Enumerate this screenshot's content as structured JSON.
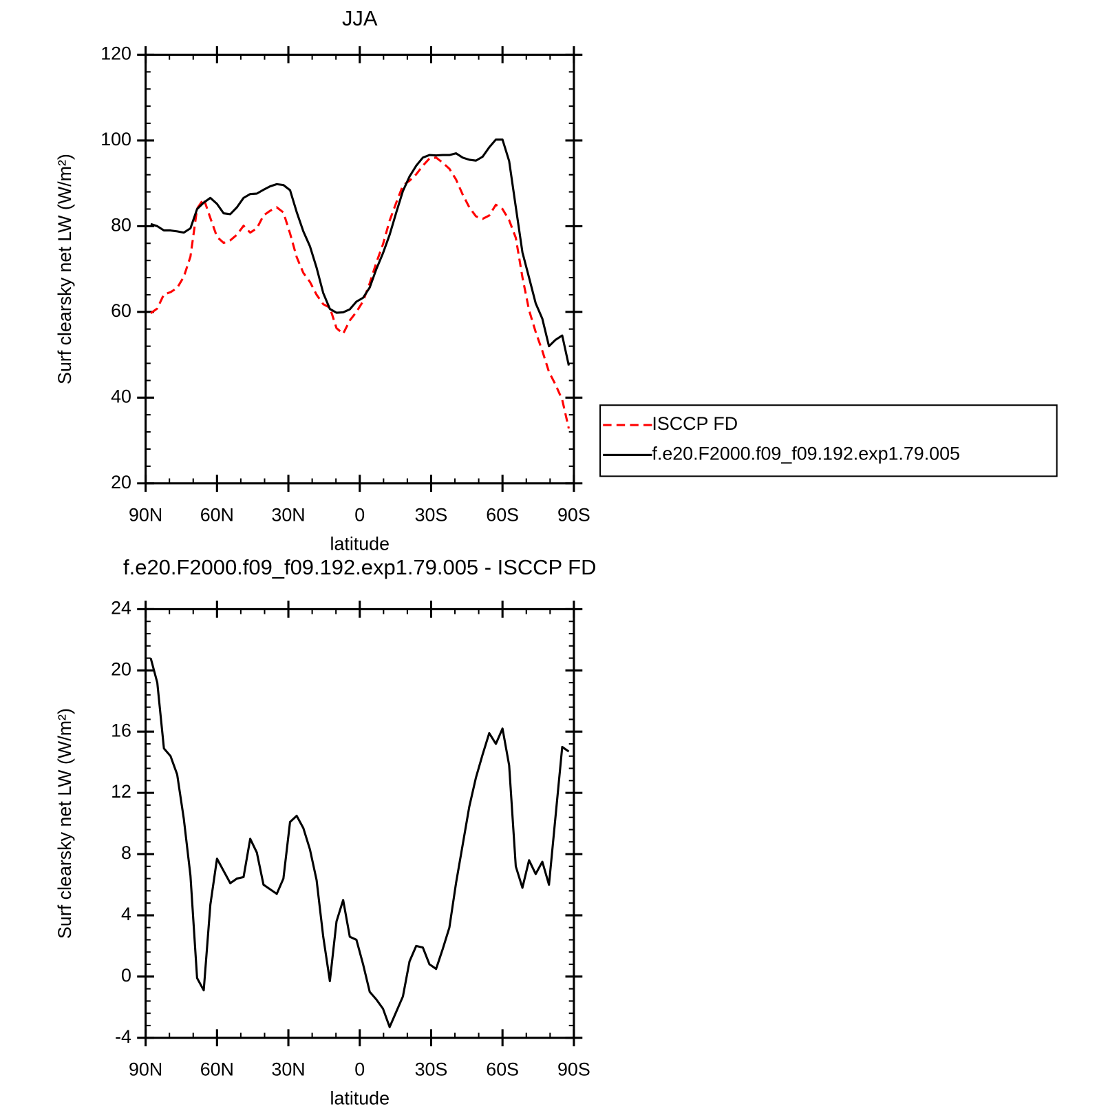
{
  "chart_data": [
    {
      "type": "line",
      "title": "JJA",
      "xlabel": "latitude",
      "ylabel": "Surf clearsky net LW (W/m²)",
      "x": [
        87.86,
        85.1,
        82.31,
        79.53,
        76.74,
        73.95,
        71.16,
        68.37,
        65.58,
        62.79,
        60.0,
        57.21,
        54.42,
        51.63,
        48.84,
        46.04,
        43.25,
        40.46,
        37.67,
        34.88,
        32.09,
        29.3,
        26.51,
        23.72,
        20.93,
        18.14,
        15.35,
        12.56,
        9.77,
        6.98,
        4.19,
        1.4,
        -1.4,
        -4.19,
        -6.98,
        -9.77,
        -12.56,
        -15.35,
        -18.14,
        -20.93,
        -23.72,
        -26.51,
        -29.3,
        -32.09,
        -34.88,
        -37.67,
        -40.46,
        -43.25,
        -46.04,
        -48.84,
        -51.63,
        -54.42,
        -57.21,
        -60.0,
        -62.79,
        -65.58,
        -68.37,
        -71.16,
        -73.95,
        -76.74,
        -79.53,
        -82.31,
        -85.1,
        -87.86
      ],
      "series": [
        {
          "name": "ISCCP FD",
          "color": "#ff0000",
          "linestyle": "dashed",
          "values": [
            59.7,
            60.8,
            64.1,
            64.6,
            65.6,
            68.2,
            72.9,
            84.1,
            86.4,
            81.9,
            77.5,
            76.1,
            76.7,
            78.0,
            80.1,
            78.5,
            79.5,
            82.5,
            83.6,
            84.4,
            83.2,
            78.3,
            72.8,
            69.1,
            67.0,
            64.0,
            61.8,
            61.0,
            56.2,
            54.9,
            58.0,
            60.0,
            62.5,
            66.7,
            71.5,
            75.8,
            81.3,
            85.5,
            89.5,
            90.6,
            92.1,
            94.1,
            95.8,
            96.0,
            94.8,
            93.4,
            90.9,
            87.4,
            84.4,
            82.3,
            81.7,
            82.5,
            85.0,
            84.0,
            81.4,
            77.3,
            68.1,
            60.4,
            55.3,
            50.9,
            46.0,
            43.0,
            39.5,
            32.8
          ]
        },
        {
          "name": "f.e20.F2000.f09_f09.192.exp1.79.005",
          "color": "#000000",
          "linestyle": "solid",
          "values": [
            80.5,
            80.0,
            79.0,
            79.0,
            78.8,
            78.5,
            79.5,
            84.0,
            85.5,
            86.6,
            85.2,
            83.0,
            82.8,
            84.4,
            86.6,
            87.5,
            87.6,
            88.5,
            89.3,
            89.8,
            89.6,
            88.4,
            83.3,
            78.8,
            75.3,
            70.3,
            64.4,
            60.7,
            59.8,
            59.9,
            60.6,
            62.4,
            63.3,
            65.7,
            70.0,
            73.7,
            78.0,
            83.2,
            88.2,
            91.6,
            94.1,
            96.0,
            96.6,
            96.5,
            96.6,
            96.6,
            97.0,
            96.0,
            95.5,
            95.3,
            96.2,
            98.4,
            100.2,
            100.2,
            95.2,
            84.5,
            73.9,
            68.0,
            62.0,
            58.4,
            52.0,
            53.5,
            54.5,
            47.5
          ]
        }
      ],
      "xlim": [
        90,
        -90
      ],
      "xticks": [
        {
          "value": 90,
          "label": "90N"
        },
        {
          "value": 60,
          "label": "60N"
        },
        {
          "value": 30,
          "label": "30N"
        },
        0,
        {
          "value": -30,
          "label": "30S"
        },
        {
          "value": -60,
          "label": "60S"
        },
        {
          "value": -90,
          "label": "90S"
        }
      ],
      "ylim": [
        20,
        120
      ],
      "yticks": [
        20,
        40,
        60,
        80,
        100,
        120
      ],
      "legend": "right"
    },
    {
      "type": "line",
      "title": "f.e20.F2000.f09_f09.192.exp1.79.005 - ISCCP FD",
      "xlabel": "latitude",
      "ylabel": "Surf clearsky net LW (W/m²)",
      "x": [
        87.86,
        85.1,
        82.31,
        79.53,
        76.74,
        73.95,
        71.16,
        68.37,
        65.58,
        62.79,
        60.0,
        57.21,
        54.42,
        51.63,
        48.84,
        46.04,
        43.25,
        40.46,
        37.67,
        34.88,
        32.09,
        29.3,
        26.51,
        23.72,
        20.93,
        18.14,
        15.35,
        12.56,
        9.77,
        6.98,
        4.19,
        1.4,
        -1.4,
        -4.19,
        -6.98,
        -9.77,
        -12.56,
        -15.35,
        -18.14,
        -20.93,
        -23.72,
        -26.51,
        -29.3,
        -32.09,
        -34.88,
        -37.67,
        -40.46,
        -43.25,
        -46.04,
        -48.84,
        -51.63,
        -54.42,
        -57.21,
        -60.0,
        -62.79,
        -65.58,
        -68.37,
        -71.16,
        -73.95,
        -76.74,
        -79.53,
        -82.31,
        -85.1,
        -87.86
      ],
      "series": [
        {
          "color": "#000000",
          "linestyle": "solid",
          "values": [
            20.8,
            19.2,
            14.9,
            14.4,
            13.2,
            10.3,
            6.6,
            -0.1,
            -0.9,
            4.7,
            7.7,
            6.9,
            6.1,
            6.4,
            6.5,
            9.0,
            8.1,
            6.0,
            5.7,
            5.4,
            6.4,
            10.1,
            10.5,
            9.7,
            8.3,
            6.3,
            2.6,
            -0.3,
            3.6,
            5.0,
            2.6,
            2.4,
            0.8,
            -1.0,
            -1.5,
            -2.1,
            -3.3,
            -2.3,
            -1.3,
            1.0,
            2.0,
            1.9,
            0.8,
            0.5,
            1.8,
            3.2,
            6.1,
            8.6,
            11.1,
            13.0,
            14.5,
            15.9,
            15.2,
            16.2,
            13.8,
            7.2,
            5.8,
            7.6,
            6.7,
            7.5,
            6.0,
            10.5,
            15.0,
            14.7
          ]
        }
      ],
      "xlim": [
        90,
        -90
      ],
      "xticks": [
        {
          "value": 90,
          "label": "90N"
        },
        {
          "value": 60,
          "label": "60N"
        },
        {
          "value": 30,
          "label": "30N"
        },
        0,
        {
          "value": -30,
          "label": "30S"
        },
        {
          "value": -60,
          "label": "60S"
        },
        {
          "value": -90,
          "label": "90S"
        }
      ],
      "ylim": [
        -4,
        24
      ],
      "yticks": [
        -4,
        0,
        4,
        8,
        12,
        16,
        20,
        24
      ]
    }
  ]
}
